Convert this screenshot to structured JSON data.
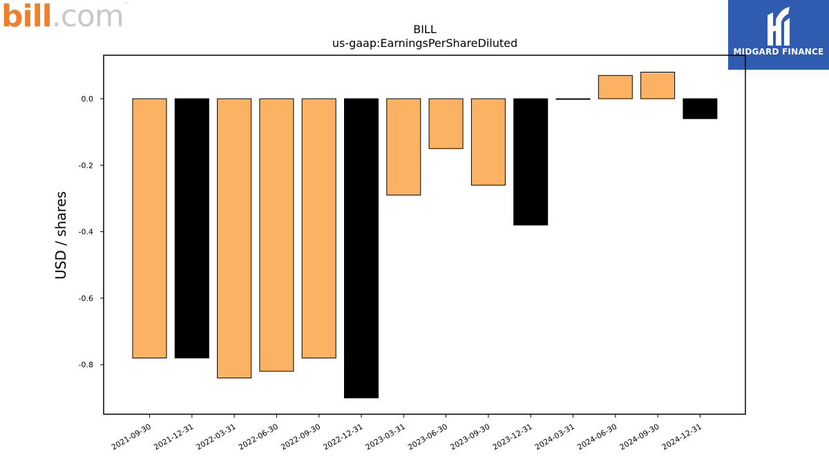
{
  "logos": {
    "left_brand_main": "bill",
    "left_brand_suffix": ".com",
    "left_brand_tm": "™",
    "right_brand": "MIDGARD FINANCE"
  },
  "colors": {
    "bar_orange": "#fbb262",
    "bar_black": "#000000",
    "logo_blue": "#2f5bb0",
    "logo_orange": "#f07f2a"
  },
  "chart_data": {
    "type": "bar",
    "title": "BILL",
    "subtitle": "us-gaap:EarningsPerShareDiluted",
    "xlabel": "",
    "ylabel": "USD / shares",
    "ylim": [
      -0.95,
      0.13
    ],
    "yticks": [
      "0.0",
      "-0.2",
      "-0.4",
      "-0.6",
      "-0.8"
    ],
    "ytick_values": [
      0.0,
      -0.2,
      -0.4,
      -0.6,
      -0.8
    ],
    "grid": false,
    "categories": [
      "2021-09-30",
      "2021-12-31",
      "2022-03-31",
      "2022-06-30",
      "2022-09-30",
      "2022-12-31",
      "2023-03-31",
      "2023-06-30",
      "2023-09-30",
      "2023-12-31",
      "2024-03-31",
      "2024-06-30",
      "2024-09-30",
      "2024-12-31"
    ],
    "values": [
      -0.78,
      -0.78,
      -0.84,
      -0.82,
      -0.78,
      -0.9,
      -0.29,
      -0.15,
      -0.26,
      -0.38,
      0.0,
      0.07,
      0.08,
      -0.06
    ],
    "bar_colors": [
      "#fbb262",
      "#000000",
      "#fbb262",
      "#fbb262",
      "#fbb262",
      "#000000",
      "#fbb262",
      "#fbb262",
      "#fbb262",
      "#000000",
      "#fbb262",
      "#fbb262",
      "#fbb262",
      "#000000"
    ]
  }
}
